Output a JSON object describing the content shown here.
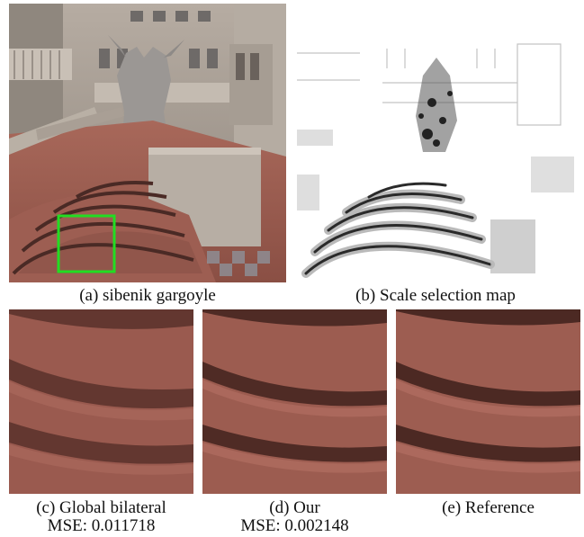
{
  "figure": {
    "panels": [
      {
        "id": "a",
        "caption": "(a) sibenik gargoyle"
      },
      {
        "id": "b",
        "caption": "(b) Scale selection map"
      },
      {
        "id": "c",
        "caption": "(c) Global bilateral",
        "metric": "MSE: 0.011718"
      },
      {
        "id": "d",
        "caption": "(d) Our",
        "metric": "MSE: 0.002148"
      },
      {
        "id": "e",
        "caption": "(e) Reference"
      }
    ],
    "highlight_color": "#22dd22"
  }
}
